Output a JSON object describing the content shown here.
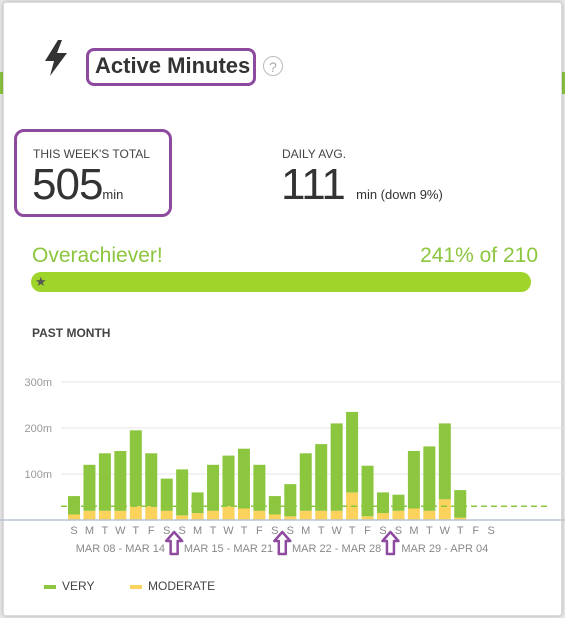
{
  "header": {
    "icon": "lightning-bolt-icon",
    "title": "Active Minutes",
    "help": "?"
  },
  "stats": {
    "week_total_label": "THIS WEEK'S TOTAL",
    "week_total_value": "505",
    "week_total_unit": "min",
    "daily_avg_label": "DAILY AVG.",
    "daily_avg_value": "111",
    "daily_avg_unit": "min (down 9%)"
  },
  "goal": {
    "title": "Overachiever!",
    "percent_text": "241% of 210",
    "progress_fraction": 1.0,
    "icon": "star-icon"
  },
  "chart_section_label": "PAST MONTH",
  "colors": {
    "very": "#8cc63f",
    "moderate": "#fbd35c",
    "goal_line": "#8cc63f",
    "annotation": "#8e4a9e"
  },
  "chart_data": {
    "type": "bar",
    "stacked": true,
    "ylim": [
      0,
      300
    ],
    "yticks": [
      100,
      200,
      300
    ],
    "ytick_labels": [
      "100m",
      "200m",
      "300m"
    ],
    "goal_line": 30,
    "grid": true,
    "day_labels": [
      "S",
      "M",
      "T",
      "W",
      "T",
      "F",
      "S",
      "S",
      "M",
      "T",
      "W",
      "T",
      "F",
      "S",
      "S",
      "M",
      "T",
      "W",
      "T",
      "F",
      "S",
      "S",
      "M",
      "T",
      "W",
      "T",
      "F",
      "S"
    ],
    "week_labels": [
      "MAR 08 - MAR 14",
      "MAR 15 - MAR 21",
      "MAR 22 - MAR 28",
      "MAR 29 - APR 04"
    ],
    "series": [
      {
        "name": "VERY",
        "values": [
          40,
          100,
          125,
          130,
          165,
          115,
          70,
          100,
          45,
          100,
          110,
          130,
          100,
          40,
          70,
          125,
          145,
          190,
          175,
          110,
          45,
          35,
          125,
          140,
          165,
          60,
          null,
          null
        ]
      },
      {
        "name": "MODERATE",
        "values": [
          12,
          20,
          20,
          20,
          30,
          30,
          20,
          10,
          15,
          20,
          30,
          25,
          20,
          12,
          8,
          20,
          20,
          20,
          60,
          8,
          15,
          20,
          25,
          20,
          45,
          5,
          null,
          null
        ]
      }
    ],
    "legend_position": "bottom-left"
  },
  "legend": {
    "very_label": "VERY",
    "moderate_label": "MODERATE"
  }
}
